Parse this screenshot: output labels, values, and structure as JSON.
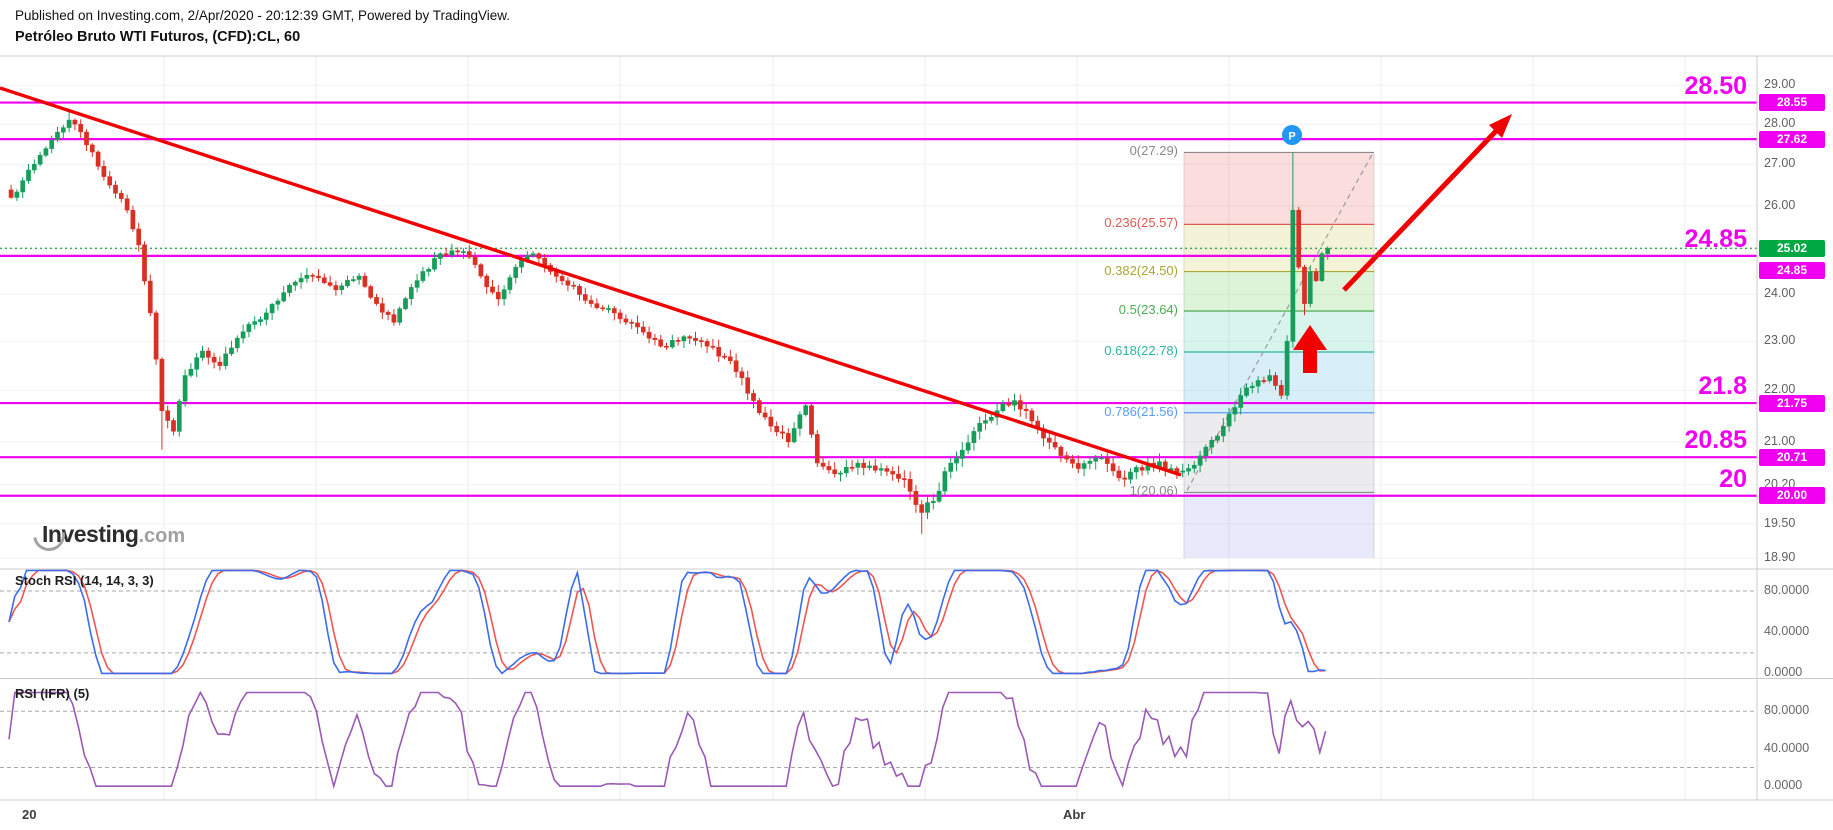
{
  "header": {
    "published": "Published on Investing.com, 2/Apr/2020 - 20:12:39 GMT, Powered by TradingView.",
    "title": "Petróleo Bruto WTI Futuros, (CFD):CL, 60"
  },
  "watermark": {
    "brand": "Investing",
    "tld": ".com"
  },
  "panels": {
    "stoch": {
      "label": "Stoch RSI (14, 14, 3, 3)",
      "axis_ticks": [
        "80.0000",
        "40.0000",
        "0.0000"
      ]
    },
    "rsi": {
      "label": "RSI (IFR) (5)",
      "axis_ticks": [
        "80.0000",
        "40.0000",
        "0.0000"
      ]
    }
  },
  "time_axis": {
    "labels": [
      "20",
      "Abr"
    ]
  },
  "chart_data": {
    "type": "candlestick",
    "symbol": "Petróleo Bruto WTI Futuros, (CFD):CL",
    "interval_minutes": 60,
    "price_scale": "log",
    "price_axis_ticks": [
      29.0,
      28.0,
      27.0,
      26.0,
      25.0,
      24.0,
      23.0,
      22.0,
      21.0,
      20.2,
      19.5,
      18.9
    ],
    "current_price": {
      "value": 25.02,
      "tag": "25.02"
    },
    "current_price_color": "#00a843",
    "level_line_color": "#f000f0",
    "horizontal_levels": [
      {
        "price": 28.55,
        "tag": "28.55",
        "big_label": "28.50",
        "tag_dy": 0
      },
      {
        "price": 27.62,
        "tag": "27.62",
        "big_label": "",
        "tag_dy": 0
      },
      {
        "price": 24.85,
        "tag": "24.85",
        "big_label": "24.85",
        "tag_dy": 15
      },
      {
        "price": 21.75,
        "tag": "21.75",
        "big_label": "21.8",
        "tag_dy": 0
      },
      {
        "price": 20.71,
        "tag": "20.71",
        "big_label": "20.85",
        "tag_dy": 0
      },
      {
        "price": 20.0,
        "tag": "20.00",
        "big_label": "20",
        "tag_dy": 0
      }
    ],
    "fibonacci": {
      "levels": [
        {
          "label": "0(27.29)",
          "price": 27.29,
          "color": "#8a8a8a"
        },
        {
          "label": "0.236(25.57)",
          "price": 25.57,
          "color": "#dd5b52"
        },
        {
          "label": "0.382(24.50)",
          "price": 24.5,
          "color": "#a9a636"
        },
        {
          "label": "0.5(23.64)",
          "price": 23.64,
          "color": "#4cae4f"
        },
        {
          "label": "0.618(22.78)",
          "price": 22.78,
          "color": "#2fb5a0"
        },
        {
          "label": "0.786(21.56)",
          "price": 21.56,
          "color": "#5a9cf8"
        },
        {
          "label": "1(20.06)",
          "price": 20.06,
          "color": "#8a8a8a"
        }
      ],
      "band_fills": [
        "rgba(235,100,100,0.22)",
        "rgba(218,212,110,0.28)",
        "rgba(135,215,120,0.28)",
        "rgba(105,215,185,0.26)",
        "rgba(115,195,235,0.28)",
        "rgba(160,160,172,0.20)"
      ],
      "extension_fill": "rgba(150,160,235,0.22)"
    },
    "annotations": {
      "trendline_color": "#f20000",
      "arrow_color": "#f20000",
      "marker_p": {
        "label": "P",
        "color": "#2196f3"
      }
    },
    "candles": {
      "up_color": "#169d5a",
      "down_color": "#d93025",
      "count": 228,
      "last_close": 25.02,
      "waypoints": [
        [
          0,
          26.2
        ],
        [
          2,
          26.6
        ],
        [
          4,
          27.0
        ],
        [
          7,
          27.6
        ],
        [
          10,
          28.1
        ],
        [
          12,
          27.8
        ],
        [
          14,
          27.3
        ],
        [
          16,
          26.7
        ],
        [
          18,
          26.3
        ],
        [
          20,
          25.9
        ],
        [
          22,
          25.1
        ],
        [
          24,
          23.6
        ],
        [
          26,
          21.6
        ],
        [
          28,
          21.2
        ],
        [
          30,
          22.3
        ],
        [
          33,
          22.8
        ],
        [
          36,
          22.5
        ],
        [
          40,
          23.2
        ],
        [
          44,
          23.6
        ],
        [
          48,
          24.2
        ],
        [
          52,
          24.4
        ],
        [
          56,
          24.1
        ],
        [
          60,
          24.4
        ],
        [
          63,
          23.8
        ],
        [
          66,
          23.4
        ],
        [
          70,
          24.3
        ],
        [
          74,
          24.9
        ],
        [
          78,
          24.95
        ],
        [
          81,
          24.4
        ],
        [
          84,
          23.9
        ],
        [
          87,
          24.6
        ],
        [
          90,
          24.9
        ],
        [
          93,
          24.5
        ],
        [
          96,
          24.2
        ],
        [
          100,
          23.8
        ],
        [
          104,
          23.6
        ],
        [
          108,
          23.3
        ],
        [
          112,
          22.9
        ],
        [
          116,
          23.1
        ],
        [
          120,
          22.9
        ],
        [
          124,
          22.6
        ],
        [
          128,
          21.8
        ],
        [
          131,
          21.3
        ],
        [
          134,
          21.0
        ],
        [
          137,
          21.7
        ],
        [
          139,
          20.6
        ],
        [
          142,
          20.4
        ],
        [
          146,
          20.6
        ],
        [
          150,
          20.5
        ],
        [
          154,
          20.3
        ],
        [
          157,
          19.7
        ],
        [
          159,
          19.9
        ],
        [
          162,
          20.6
        ],
        [
          166,
          21.2
        ],
        [
          170,
          21.6
        ],
        [
          173,
          21.8
        ],
        [
          176,
          21.4
        ],
        [
          180,
          20.9
        ],
        [
          184,
          20.5
        ],
        [
          188,
          20.7
        ],
        [
          192,
          20.3
        ],
        [
          196,
          20.6
        ],
        [
          200,
          20.5
        ],
        [
          203,
          20.5
        ],
        [
          206,
          20.9
        ],
        [
          209,
          21.3
        ],
        [
          212,
          21.9
        ],
        [
          215,
          22.2
        ],
        [
          217,
          22.3
        ],
        [
          219,
          21.9
        ],
        [
          220,
          23.0
        ],
        [
          221,
          25.9
        ],
        [
          222,
          24.6
        ],
        [
          223,
          23.8
        ],
        [
          224,
          24.5
        ],
        [
          225,
          24.3
        ],
        [
          226,
          24.9
        ],
        [
          227,
          25.02
        ]
      ],
      "wick_overrides": [
        [
          10,
          "high",
          28.35
        ],
        [
          26,
          "low",
          20.85
        ],
        [
          157,
          "low",
          19.32
        ],
        [
          221,
          "high",
          27.29
        ],
        [
          223,
          "low",
          23.55
        ]
      ]
    },
    "indicators": [
      {
        "name": "Stoch RSI (14, 14, 3, 3)",
        "k_color": "#3b6cf0",
        "d_color": "#f05650",
        "levels": [
          80,
          20
        ]
      },
      {
        "name": "RSI (IFR) (5)",
        "color": "#9b59b6",
        "levels": [
          80,
          20
        ]
      }
    ]
  }
}
